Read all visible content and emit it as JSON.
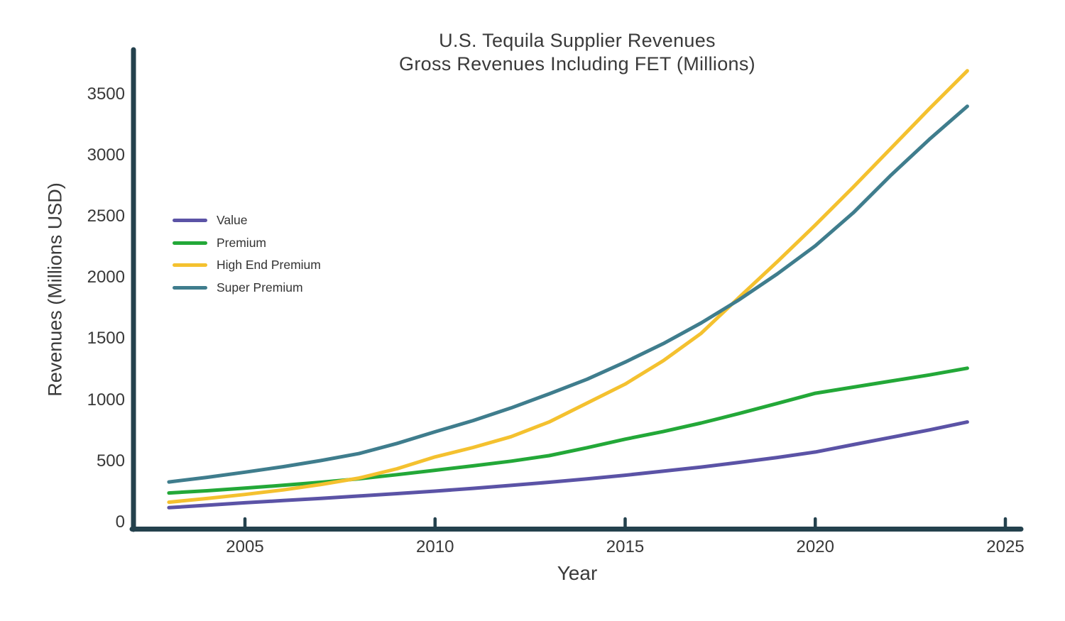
{
  "title": {
    "line1": "U.S. Tequila Supplier Revenues",
    "line2": "Gross Revenues Including FET (Millions)"
  },
  "chart_data": {
    "type": "line",
    "title": "U.S. Tequila Supplier Revenues",
    "subtitle": "Gross Revenues Including FET (Millions)",
    "xlabel": "Year",
    "ylabel": "Revenues (Millions USD)",
    "x": [
      2003,
      2004,
      2005,
      2006,
      2007,
      2008,
      2009,
      2010,
      2011,
      2012,
      2013,
      2014,
      2015,
      2016,
      2017,
      2018,
      2019,
      2020,
      2021,
      2022,
      2023,
      2024
    ],
    "series": [
      {
        "name": "Value",
        "color": "#5B53A6",
        "values": [
          120,
          140,
          160,
          178,
          196,
          215,
          235,
          255,
          278,
          302,
          328,
          355,
          385,
          418,
          452,
          490,
          530,
          575,
          635,
          695,
          755,
          820
        ]
      },
      {
        "name": "Premium",
        "color": "#23A838",
        "values": [
          240,
          258,
          280,
          303,
          328,
          356,
          390,
          426,
          462,
          500,
          545,
          610,
          680,
          742,
          812,
          890,
          972,
          1055,
          1105,
          1155,
          1205,
          1260
        ]
      },
      {
        "name": "High End Premium",
        "color": "#F4C12F",
        "values": [
          165,
          195,
          228,
          265,
          310,
          362,
          438,
          535,
          612,
          700,
          820,
          975,
          1130,
          1320,
          1545,
          1840,
          2130,
          2430,
          2740,
          3060,
          3380,
          3690
        ]
      },
      {
        "name": "Super Premium",
        "color": "#3F7D8D",
        "values": [
          330,
          368,
          410,
          455,
          505,
          562,
          645,
          740,
          832,
          935,
          1050,
          1170,
          1310,
          1460,
          1630,
          1820,
          2030,
          2260,
          2530,
          2840,
          3130,
          3400
        ]
      }
    ],
    "x_ticks": [
      "2005",
      "2010",
      "2015",
      "2020",
      "2025"
    ],
    "x_tick_values": [
      2005,
      2010,
      2015,
      2020,
      2025
    ],
    "y_ticks": [
      "0",
      "500",
      "1000",
      "1500",
      "2000",
      "2500",
      "3000",
      "3500"
    ],
    "y_tick_values": [
      0,
      500,
      1000,
      1500,
      2000,
      2500,
      3000,
      3500
    ],
    "xlim": [
      2002.9,
      2025.5
    ],
    "ylim": [
      0,
      3790
    ],
    "grid": false,
    "legend_position": "upper-left-inside",
    "axis_color": "#24414D",
    "text_color": "#3A3A3A"
  }
}
